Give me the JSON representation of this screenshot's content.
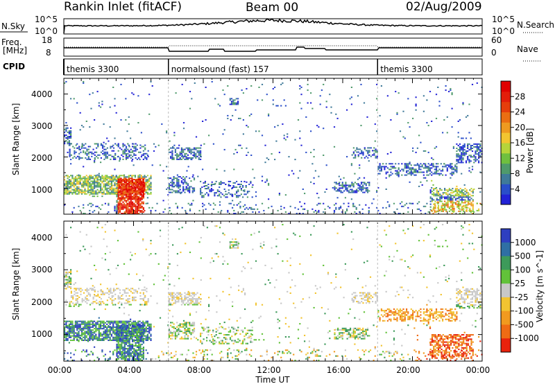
{
  "header": {
    "title": "Rankin Inlet (fitACF)",
    "beam": "Beam 00",
    "date": "02/Aug/2009"
  },
  "strip_labels": {
    "nsky": "N.Sky",
    "nsky_max": "10^5",
    "nsky_min": "10^0",
    "nsearch": "N.Search",
    "nsearch_max": "10^5",
    "nsearch_min": "10^0",
    "freq": "Freq.",
    "freq_unit": "[MHz]",
    "freq_max": "18",
    "freq_min": "8",
    "nave": "Nave",
    "nave_max": "60",
    "nave_min": "0",
    "cpid": "CPID"
  },
  "cpid_segments": [
    {
      "label": "themis 3300",
      "start_h": 0
    },
    {
      "label": "normalsound (fast) 157",
      "start_h": 6
    },
    {
      "label": "themis 3300",
      "start_h": 18
    }
  ],
  "chart_data": [
    {
      "type": "heatmap",
      "panel": "power",
      "xlabel": "",
      "ylabel": "Slant Range [km]",
      "x_range_hours": [
        0,
        24
      ],
      "y_range_km": [
        180,
        4500
      ],
      "yticks": [
        "1000",
        "2000",
        "3000",
        "4000"
      ],
      "colorbar": {
        "label": "Power [dB]",
        "ticks": [
          "4",
          "8",
          "12",
          "16",
          "20",
          "24",
          "28"
        ],
        "colors": [
          "#2222d6",
          "#2a4ec9",
          "#3f7a99",
          "#4f9a6b",
          "#6fbf3f",
          "#b6d43a",
          "#f2c530",
          "#ee9a20",
          "#ea6e12",
          "#e53e0b",
          "#e31d0a",
          "#e00000"
        ]
      }
    },
    {
      "type": "heatmap",
      "panel": "velocity",
      "xlabel": "Time UT",
      "ylabel": "Slant Range [km]",
      "x_range_hours": [
        0,
        24
      ],
      "y_range_km": [
        180,
        4500
      ],
      "xticks": [
        "00:00",
        "04:00",
        "08:00",
        "12:00",
        "16:00",
        "20:00",
        "00:00"
      ],
      "yticks": [
        "1000",
        "2000",
        "3000",
        "4000"
      ],
      "colorbar": {
        "label": "Velocity [m s^-1]",
        "ticks": [
          "1000",
          "500",
          "100",
          "25",
          "-25",
          "-100",
          "-500",
          "-1000"
        ],
        "colors": [
          "#2e3fc0",
          "#2f6fa4",
          "#3d9a5a",
          "#62c23a",
          "#c8c8c8",
          "#f2c431",
          "#f19a1f",
          "#ef6b14",
          "#e8220c"
        ]
      }
    }
  ]
}
